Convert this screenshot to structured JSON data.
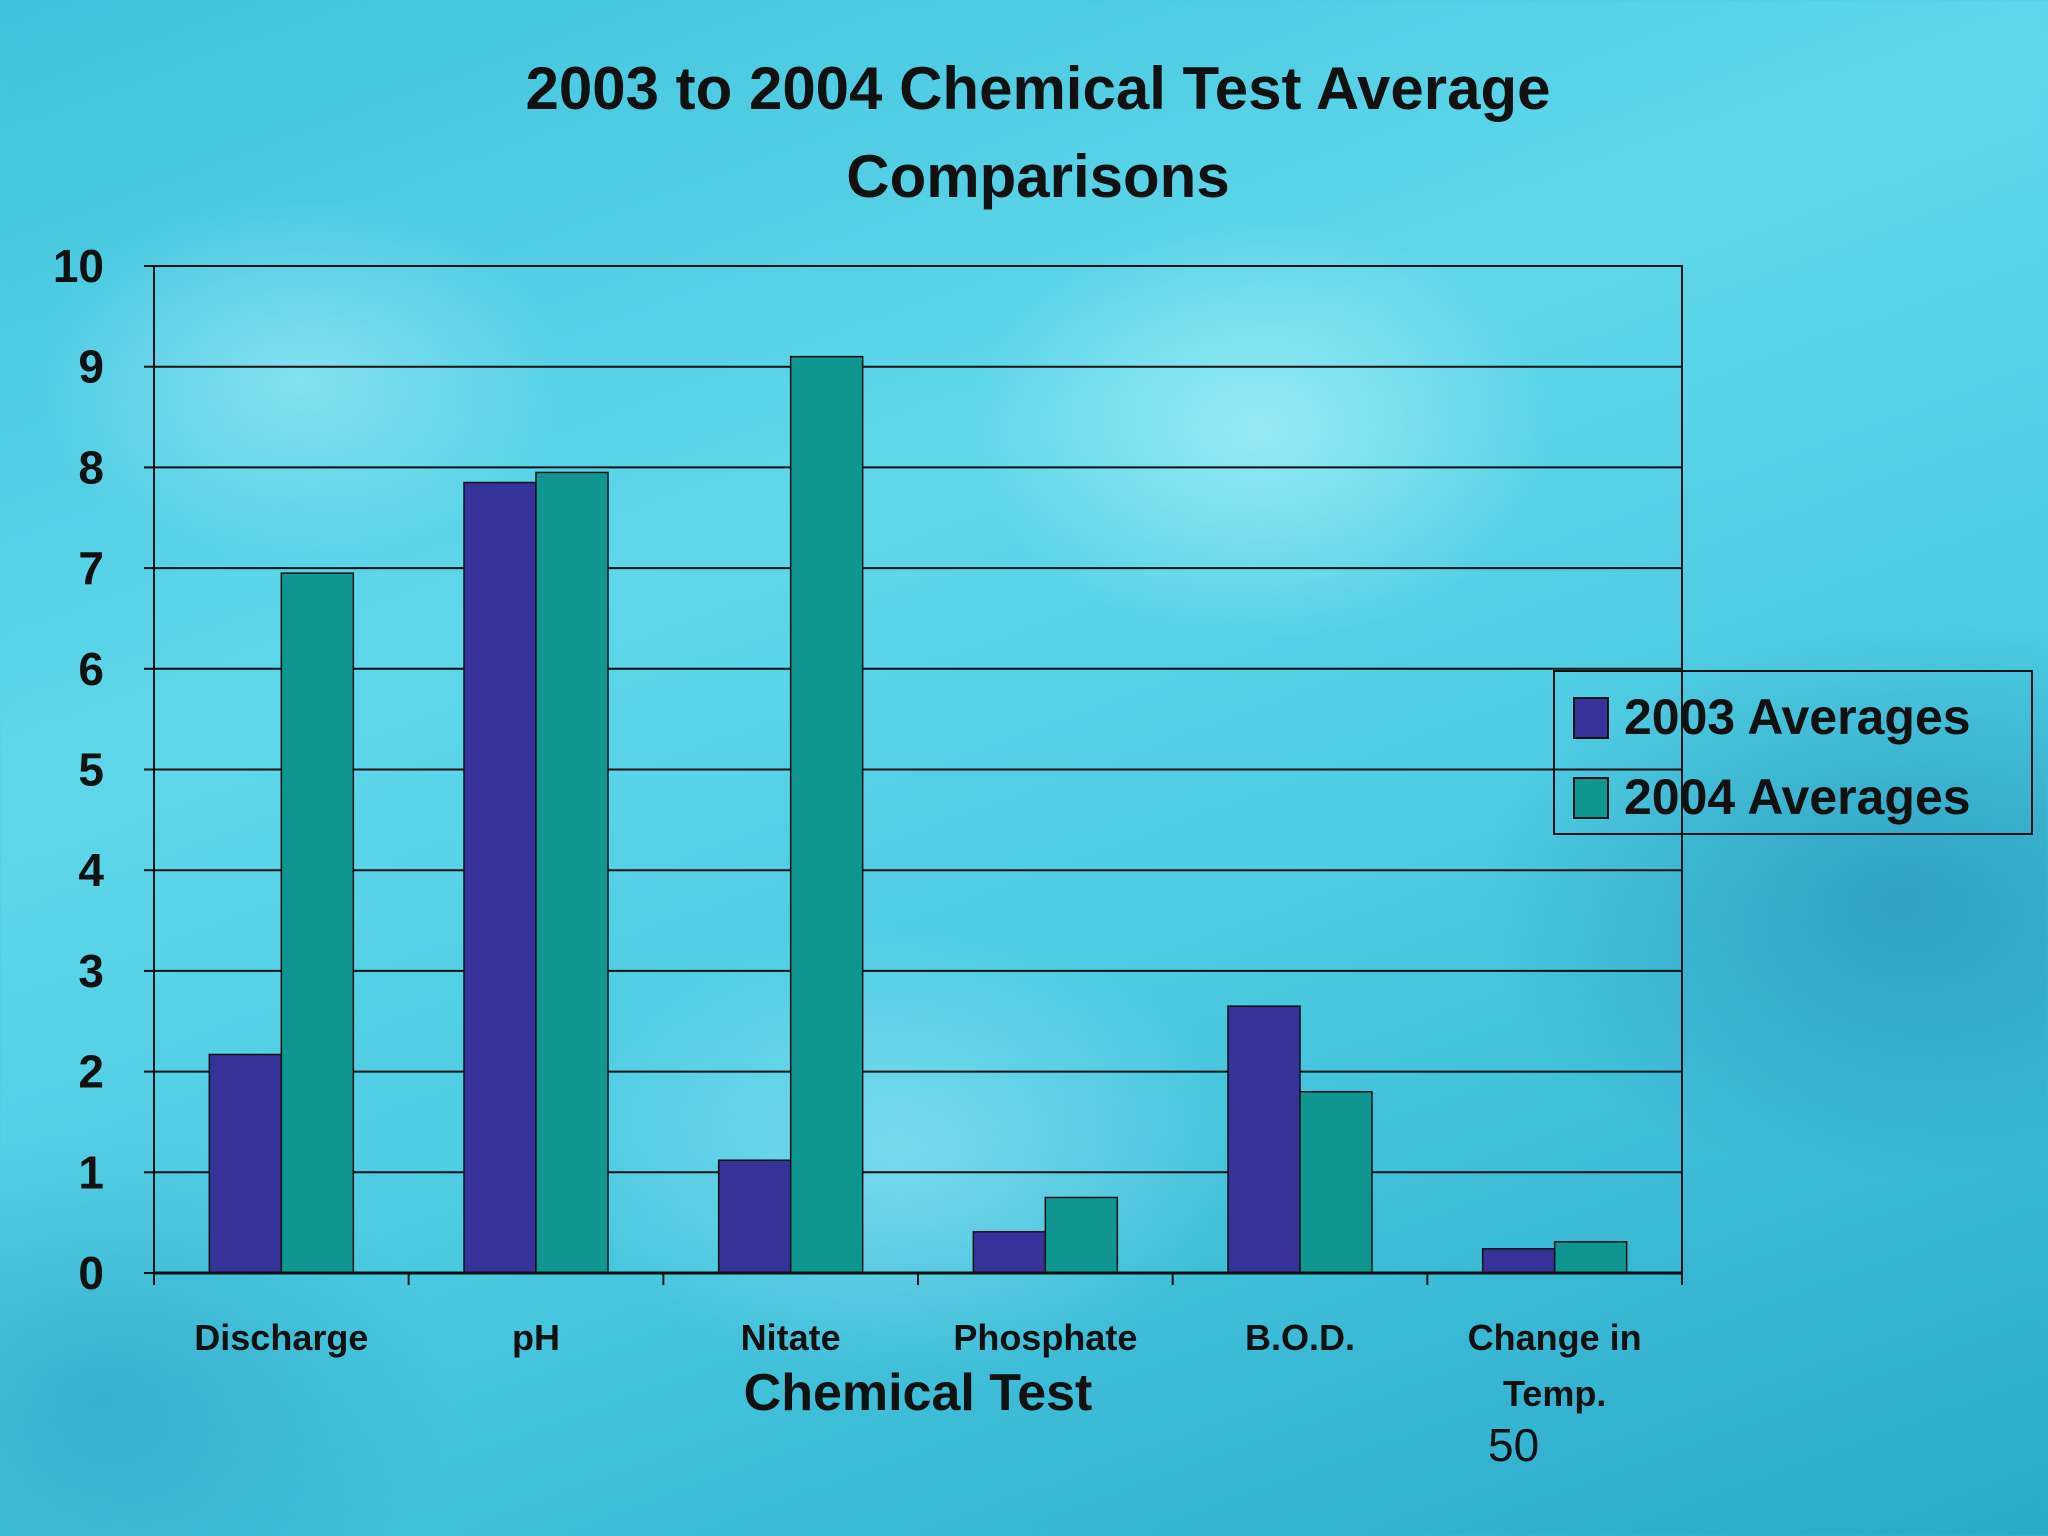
{
  "chart_data": {
    "type": "bar",
    "title_lines": [
      "2003 to 2004 Chemical Test Average",
      "Comparisons"
    ],
    "xlabel": "Chemical Test",
    "ylabel": "",
    "ylim": [
      0,
      10
    ],
    "yticks": [
      "0",
      "1",
      "2",
      "3",
      "4",
      "5",
      "6",
      "7",
      "8",
      "9",
      "10"
    ],
    "categories": [
      "Discharge",
      "pH",
      "Nitate",
      "Phosphate",
      "B.O.D.",
      "Change in Temp."
    ],
    "category_lines": [
      [
        "Discharge"
      ],
      [
        "pH"
      ],
      [
        "Nitate"
      ],
      [
        "Phosphate"
      ],
      [
        "B.O.D."
      ],
      [
        "Change in",
        "Temp."
      ]
    ],
    "series": [
      {
        "name": "2003 Averages",
        "color": "#35339a",
        "values": [
          2.17,
          7.85,
          1.12,
          0.41,
          2.65,
          0.24
        ]
      },
      {
        "name": "2004 Averages",
        "color": "#0f9690",
        "values": [
          6.95,
          7.95,
          9.1,
          0.75,
          1.8,
          0.31
        ]
      }
    ],
    "grid": true,
    "legend_position": "right"
  },
  "page_number": "50"
}
